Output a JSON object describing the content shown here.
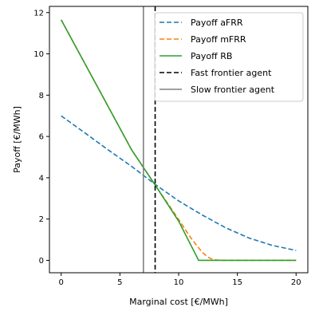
{
  "chart_data": {
    "type": "line",
    "xlabel": "Marginal cost [€/MWh]",
    "ylabel": "Payoff [€/MWh]",
    "xlim": [
      -1,
      21
    ],
    "ylim": [
      -0.6,
      12.3
    ],
    "xticks": [
      0,
      5,
      10,
      15,
      20
    ],
    "yticks": [
      0,
      2,
      4,
      6,
      8,
      10,
      12
    ],
    "grid": false,
    "legend_position": "top-right",
    "series": [
      {
        "name": "Payoff aFRR",
        "color": "#1f77b4",
        "dash": "dashed",
        "x": [
          0,
          2,
          4,
          6,
          8,
          10,
          12,
          14,
          16,
          18,
          20
        ],
        "y": [
          7.0,
          6.18,
          5.35,
          4.55,
          3.68,
          2.88,
          2.2,
          1.58,
          1.08,
          0.72,
          0.48
        ]
      },
      {
        "name": "Payoff mFRR",
        "color": "#ff7f0e",
        "dash": "dashed",
        "x": [
          0,
          2,
          4,
          6,
          8,
          10,
          11,
          11.5,
          12,
          12.5,
          13,
          14,
          16,
          18,
          20
        ],
        "y": [
          11.65,
          9.55,
          7.45,
          5.35,
          3.65,
          1.98,
          1.12,
          0.75,
          0.4,
          0.15,
          0.02,
          0,
          0,
          0,
          0
        ]
      },
      {
        "name": "Payoff RB",
        "color": "#2ca02c",
        "dash": "solid",
        "x": [
          0,
          2,
          4,
          6,
          8,
          10,
          11.7,
          12,
          14,
          16,
          18,
          20
        ],
        "y": [
          11.65,
          9.55,
          7.45,
          5.35,
          3.65,
          1.9,
          0,
          0,
          0,
          0,
          0,
          0
        ]
      }
    ],
    "vlines": [
      {
        "name": "Fast frontier agent",
        "x": 8.0,
        "color": "#000000",
        "dash": "dashed"
      },
      {
        "name": "Slow frontier agent",
        "x": 7.0,
        "color": "#808080",
        "dash": "solid"
      }
    ]
  }
}
